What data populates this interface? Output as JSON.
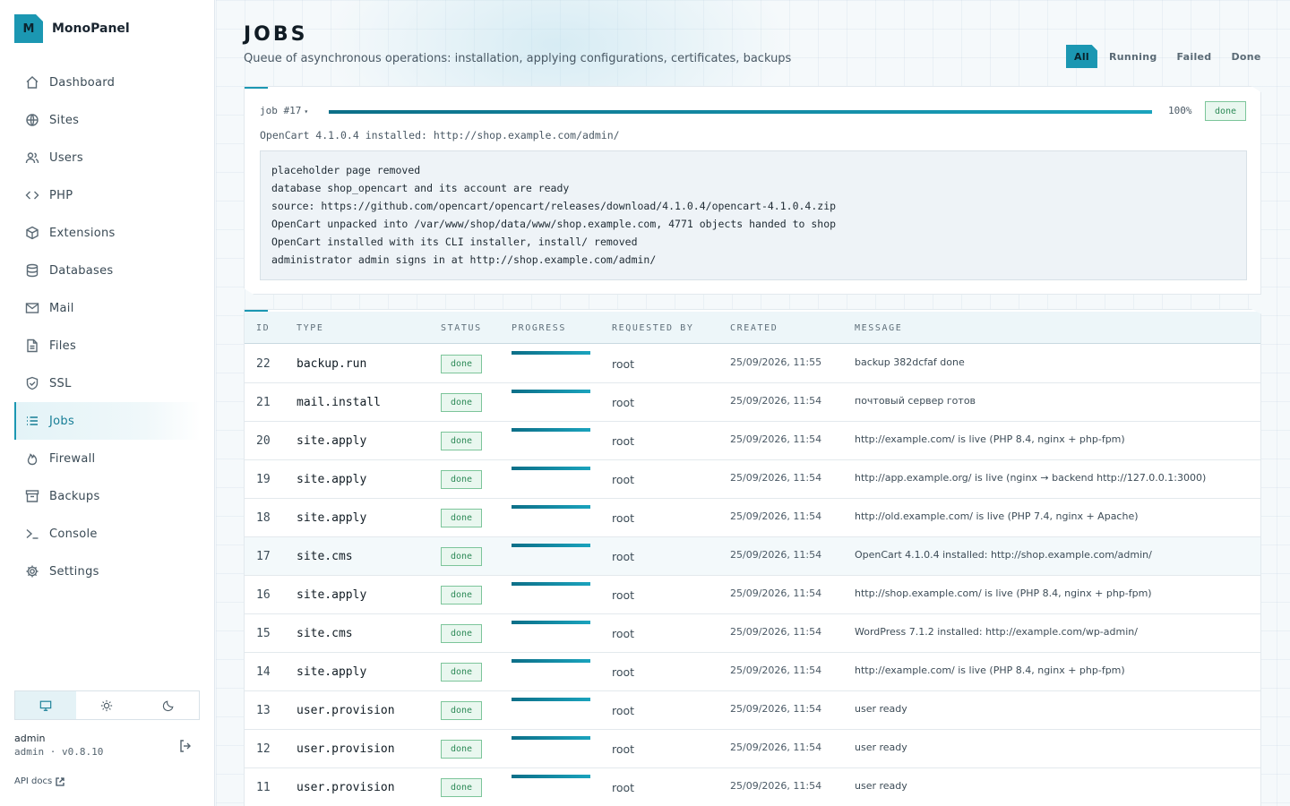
{
  "app": {
    "name": "MonoPanel",
    "logo_letter": "M"
  },
  "sidebar": {
    "items": [
      {
        "label": "Dashboard",
        "icon": "home-icon",
        "active": false
      },
      {
        "label": "Sites",
        "icon": "globe-icon",
        "active": false
      },
      {
        "label": "Users",
        "icon": "users-icon",
        "active": false
      },
      {
        "label": "PHP",
        "icon": "code-icon",
        "active": false
      },
      {
        "label": "Extensions",
        "icon": "cube-icon",
        "active": false
      },
      {
        "label": "Databases",
        "icon": "database-icon",
        "active": false
      },
      {
        "label": "Mail",
        "icon": "mail-icon",
        "active": false
      },
      {
        "label": "Files",
        "icon": "file-icon",
        "active": false
      },
      {
        "label": "SSL",
        "icon": "shield-icon",
        "active": false
      },
      {
        "label": "Jobs",
        "icon": "list-icon",
        "active": true
      },
      {
        "label": "Firewall",
        "icon": "flame-icon",
        "active": false
      },
      {
        "label": "Backups",
        "icon": "archive-icon",
        "active": false
      },
      {
        "label": "Console",
        "icon": "terminal-icon",
        "active": false
      },
      {
        "label": "Settings",
        "icon": "gear-icon",
        "active": false
      }
    ],
    "theme": {
      "options": [
        "monitor-icon",
        "sun-icon",
        "moon-icon"
      ],
      "active": "monitor-icon"
    },
    "user": {
      "name": "admin",
      "meta": "admin · v0.8.10"
    },
    "api_docs": "API docs"
  },
  "page": {
    "title": "JOBS",
    "subtitle": "Queue of asynchronous operations: installation, applying configurations, certificates, backups",
    "filters": [
      {
        "label": "All",
        "active": true
      },
      {
        "label": "Running",
        "active": false
      },
      {
        "label": "Failed",
        "active": false
      },
      {
        "label": "Done",
        "active": false
      }
    ]
  },
  "job_detail": {
    "label": "job #17",
    "caret": "▾",
    "progress": 100,
    "progress_text": "100%",
    "status": "done",
    "summary": "OpenCart 4.1.0.4 installed: http://shop.example.com/admin/",
    "log": [
      "placeholder page removed",
      "database shop_opencart and its account are ready",
      "source: https://github.com/opencart/opencart/releases/download/4.1.0.4/opencart-4.1.0.4.zip",
      "OpenCart unpacked into /var/www/shop/data/www/shop.example.com, 4771 objects handed to shop",
      "OpenCart installed with its CLI installer, install/ removed",
      "administrator admin signs in at http://shop.example.com/admin/"
    ]
  },
  "table": {
    "headers": {
      "id": "ID",
      "type": "TYPE",
      "status": "STATUS",
      "progress": "PROGRESS",
      "requested_by": "REQUESTED BY",
      "created": "CREATED",
      "message": "MESSAGE"
    },
    "rows": [
      {
        "id": "22",
        "type": "backup.run",
        "status": "done",
        "progress": 100,
        "requested_by": "root",
        "created": "25/09/2026, 11:55",
        "message": "backup 382dcfaf done"
      },
      {
        "id": "21",
        "type": "mail.install",
        "status": "done",
        "progress": 100,
        "requested_by": "root",
        "created": "25/09/2026, 11:54",
        "message": "почтовый сервер готов"
      },
      {
        "id": "20",
        "type": "site.apply",
        "status": "done",
        "progress": 100,
        "requested_by": "root",
        "created": "25/09/2026, 11:54",
        "message": "http://example.com/ is live (PHP 8.4, nginx + php-fpm)"
      },
      {
        "id": "19",
        "type": "site.apply",
        "status": "done",
        "progress": 100,
        "requested_by": "root",
        "created": "25/09/2026, 11:54",
        "message": "http://app.example.org/ is live (nginx → backend http://127.0.0.1:3000)"
      },
      {
        "id": "18",
        "type": "site.apply",
        "status": "done",
        "progress": 100,
        "requested_by": "root",
        "created": "25/09/2026, 11:54",
        "message": "http://old.example.com/ is live (PHP 7.4, nginx + Apache)"
      },
      {
        "id": "17",
        "type": "site.cms",
        "status": "done",
        "progress": 100,
        "requested_by": "root",
        "created": "25/09/2026, 11:54",
        "message": "OpenCart 4.1.0.4 installed: http://shop.example.com/admin/",
        "selected": true
      },
      {
        "id": "16",
        "type": "site.apply",
        "status": "done",
        "progress": 100,
        "requested_by": "root",
        "created": "25/09/2026, 11:54",
        "message": "http://shop.example.com/ is live (PHP 8.4, nginx + php-fpm)"
      },
      {
        "id": "15",
        "type": "site.cms",
        "status": "done",
        "progress": 100,
        "requested_by": "root",
        "created": "25/09/2026, 11:54",
        "message": "WordPress 7.1.2 installed: http://example.com/wp-admin/"
      },
      {
        "id": "14",
        "type": "site.apply",
        "status": "done",
        "progress": 100,
        "requested_by": "root",
        "created": "25/09/2026, 11:54",
        "message": "http://example.com/ is live (PHP 8.4, nginx + php-fpm)"
      },
      {
        "id": "13",
        "type": "user.provision",
        "status": "done",
        "progress": 100,
        "requested_by": "root",
        "created": "25/09/2026, 11:54",
        "message": "user ready"
      },
      {
        "id": "12",
        "type": "user.provision",
        "status": "done",
        "progress": 100,
        "requested_by": "root",
        "created": "25/09/2026, 11:54",
        "message": "user ready"
      },
      {
        "id": "11",
        "type": "user.provision",
        "status": "done",
        "progress": 100,
        "requested_by": "root",
        "created": "25/09/2026, 11:54",
        "message": "user ready"
      }
    ]
  },
  "colors": {
    "accent": "#1b97b2",
    "done_text": "#2d8a57",
    "done_bg": "#e9f7ef"
  }
}
